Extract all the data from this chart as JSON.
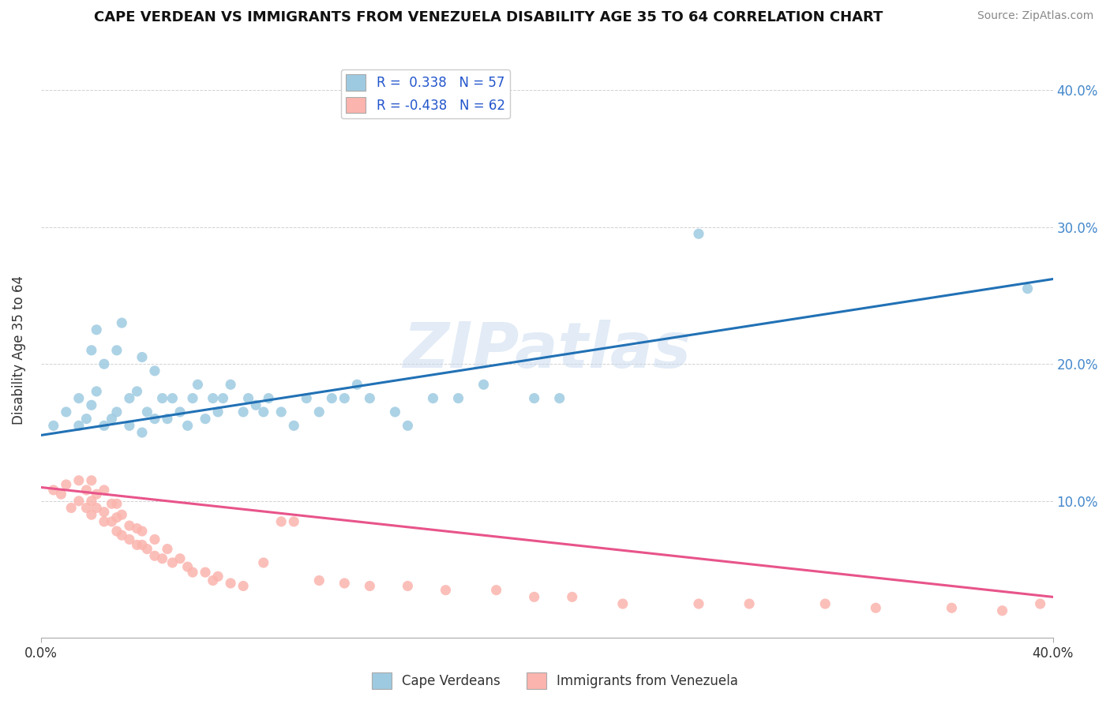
{
  "title": "CAPE VERDEAN VS IMMIGRANTS FROM VENEZUELA DISABILITY AGE 35 TO 64 CORRELATION CHART",
  "source": "Source: ZipAtlas.com",
  "ylabel": "Disability Age 35 to 64",
  "xmin": 0.0,
  "xmax": 0.4,
  "ymin": 0.0,
  "ymax": 0.42,
  "yticks": [
    0.1,
    0.2,
    0.3,
    0.4
  ],
  "ytick_labels": [
    "10.0%",
    "20.0%",
    "30.0%",
    "40.0%"
  ],
  "r_blue": 0.338,
  "n_blue": 57,
  "r_pink": -0.438,
  "n_pink": 62,
  "blue_color": "#9ecae1",
  "pink_color": "#fbb4ae",
  "line_blue": "#2171b5",
  "line_pink": "#e8548a",
  "watermark_color": "#c6d9ee",
  "legend_label_blue": "Cape Verdeans",
  "legend_label_pink": "Immigrants from Venezuela",
  "blue_x": [
    0.005,
    0.01,
    0.015,
    0.015,
    0.018,
    0.02,
    0.02,
    0.022,
    0.022,
    0.025,
    0.025,
    0.028,
    0.03,
    0.03,
    0.032,
    0.035,
    0.035,
    0.038,
    0.04,
    0.04,
    0.042,
    0.045,
    0.045,
    0.048,
    0.05,
    0.052,
    0.055,
    0.058,
    0.06,
    0.062,
    0.065,
    0.068,
    0.07,
    0.072,
    0.075,
    0.08,
    0.082,
    0.085,
    0.088,
    0.09,
    0.095,
    0.1,
    0.105,
    0.11,
    0.115,
    0.12,
    0.125,
    0.13,
    0.14,
    0.145,
    0.155,
    0.165,
    0.175,
    0.195,
    0.205,
    0.26,
    0.39
  ],
  "blue_y": [
    0.155,
    0.165,
    0.155,
    0.175,
    0.16,
    0.17,
    0.21,
    0.18,
    0.225,
    0.155,
    0.2,
    0.16,
    0.165,
    0.21,
    0.23,
    0.155,
    0.175,
    0.18,
    0.15,
    0.205,
    0.165,
    0.16,
    0.195,
    0.175,
    0.16,
    0.175,
    0.165,
    0.155,
    0.175,
    0.185,
    0.16,
    0.175,
    0.165,
    0.175,
    0.185,
    0.165,
    0.175,
    0.17,
    0.165,
    0.175,
    0.165,
    0.155,
    0.175,
    0.165,
    0.175,
    0.175,
    0.185,
    0.175,
    0.165,
    0.155,
    0.175,
    0.175,
    0.185,
    0.175,
    0.175,
    0.295,
    0.255
  ],
  "pink_x": [
    0.005,
    0.008,
    0.01,
    0.012,
    0.015,
    0.015,
    0.018,
    0.018,
    0.02,
    0.02,
    0.02,
    0.022,
    0.022,
    0.025,
    0.025,
    0.025,
    0.028,
    0.028,
    0.03,
    0.03,
    0.03,
    0.032,
    0.032,
    0.035,
    0.035,
    0.038,
    0.038,
    0.04,
    0.04,
    0.042,
    0.045,
    0.045,
    0.048,
    0.05,
    0.052,
    0.055,
    0.058,
    0.06,
    0.065,
    0.068,
    0.07,
    0.075,
    0.08,
    0.088,
    0.095,
    0.1,
    0.11,
    0.12,
    0.13,
    0.145,
    0.16,
    0.18,
    0.195,
    0.21,
    0.23,
    0.26,
    0.28,
    0.31,
    0.33,
    0.36,
    0.38,
    0.395
  ],
  "pink_y": [
    0.108,
    0.105,
    0.112,
    0.095,
    0.1,
    0.115,
    0.095,
    0.108,
    0.09,
    0.1,
    0.115,
    0.095,
    0.105,
    0.085,
    0.092,
    0.108,
    0.085,
    0.098,
    0.078,
    0.088,
    0.098,
    0.075,
    0.09,
    0.072,
    0.082,
    0.068,
    0.08,
    0.068,
    0.078,
    0.065,
    0.06,
    0.072,
    0.058,
    0.065,
    0.055,
    0.058,
    0.052,
    0.048,
    0.048,
    0.042,
    0.045,
    0.04,
    0.038,
    0.055,
    0.085,
    0.085,
    0.042,
    0.04,
    0.038,
    0.038,
    0.035,
    0.035,
    0.03,
    0.03,
    0.025,
    0.025,
    0.025,
    0.025,
    0.022,
    0.022,
    0.02,
    0.025
  ]
}
